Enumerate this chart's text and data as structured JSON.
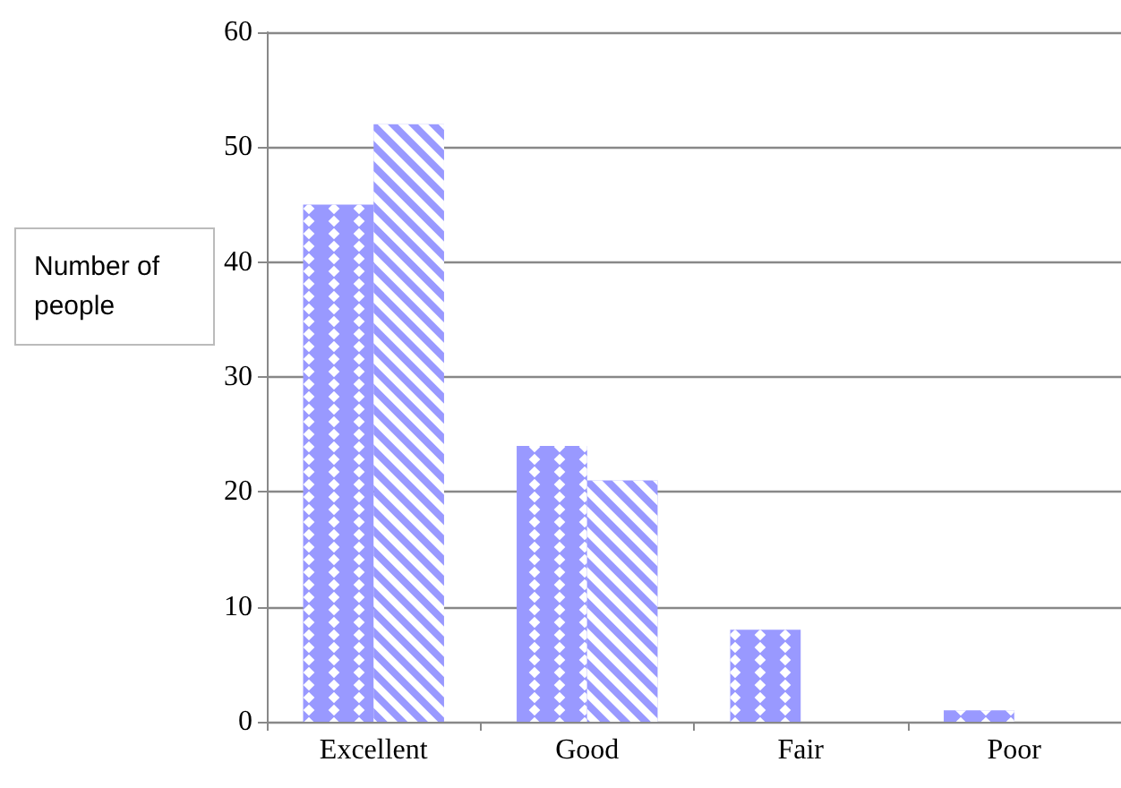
{
  "chart_data": {
    "type": "bar",
    "ylabel": "Number of people",
    "categories": [
      "Excellent",
      "Good",
      "Fair",
      "Poor"
    ],
    "series": [
      {
        "color": "#9999ff",
        "values": [
          45,
          24,
          8,
          1
        ]
      },
      {
        "color": "#9999ff",
        "values": [
          52,
          21,
          0,
          0
        ]
      }
    ],
    "ylim": [
      0,
      60
    ],
    "yticks": [
      0,
      10,
      20,
      30,
      40,
      50,
      60
    ],
    "grid": "y"
  }
}
